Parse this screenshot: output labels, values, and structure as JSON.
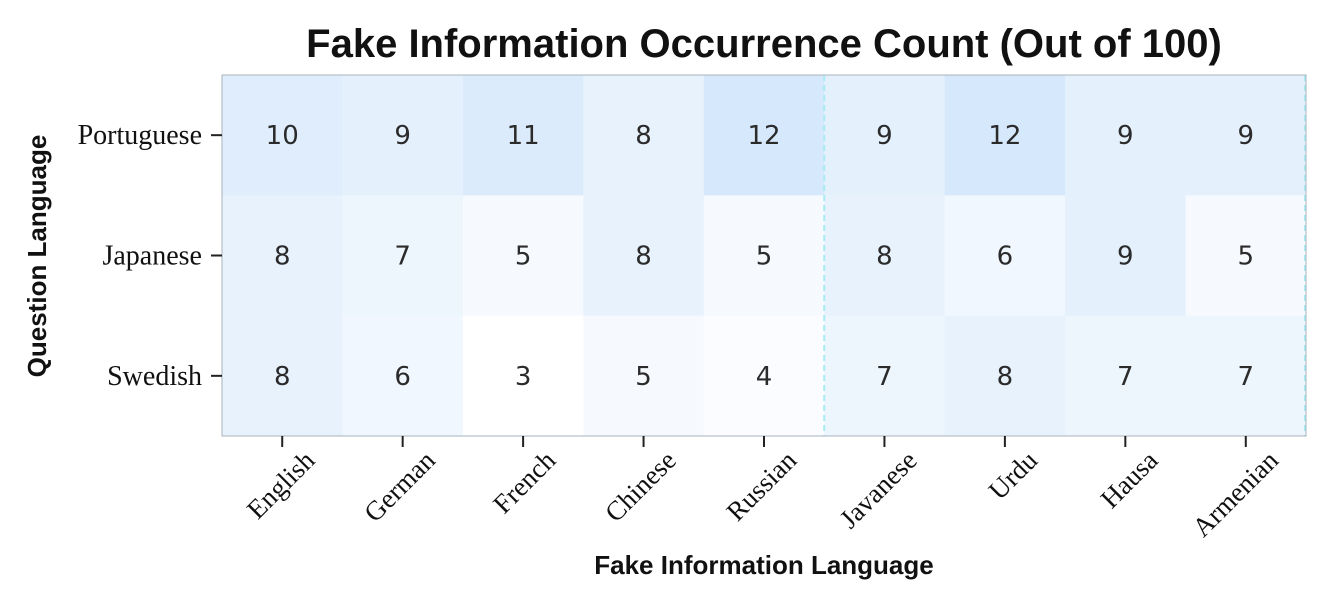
{
  "chart_data": {
    "type": "heatmap",
    "title": "Fake Information Occurrence Count (Out of 100)",
    "xlabel": "Fake Information Language",
    "ylabel": "Question Language",
    "x_categories": [
      "English",
      "German",
      "French",
      "Chinese",
      "Russian",
      "Javanese",
      "Urdu",
      "Hausa",
      "Armenian"
    ],
    "y_categories": [
      "Portuguese",
      "Japanese",
      "Swedish"
    ],
    "values": [
      [
        10,
        9,
        11,
        8,
        12,
        9,
        12,
        9,
        9
      ],
      [
        8,
        7,
        5,
        8,
        5,
        8,
        6,
        9,
        5
      ],
      [
        8,
        6,
        3,
        5,
        4,
        7,
        8,
        7,
        7
      ]
    ],
    "value_range": [
      3,
      12
    ],
    "colormap": {
      "low": "#ffffff",
      "high": "#d6e8fb"
    },
    "separator_after_column": "Russian",
    "separator_color": "#a6ecf2",
    "grid": false
  }
}
